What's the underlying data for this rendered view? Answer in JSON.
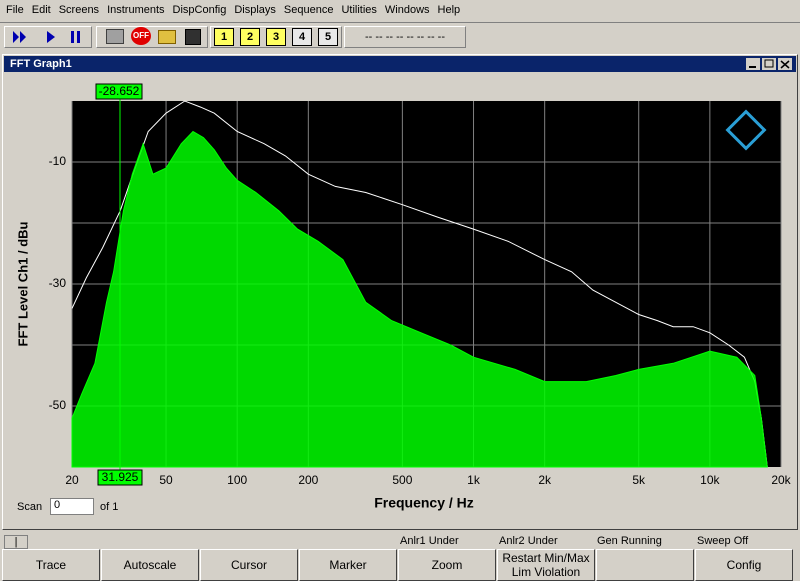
{
  "menu": [
    "File",
    "Edit",
    "Screens",
    "Instruments",
    "DispConfig",
    "Displays",
    "Sequence",
    "Utilities",
    "Windows",
    "Help"
  ],
  "toolbar": {
    "stop": "OFF",
    "panels": [
      "1",
      "2",
      "3",
      "4",
      "5"
    ],
    "readout": "-- -- -- -- -- -- -- --"
  },
  "window": {
    "title": "FFT Graph1"
  },
  "chart_data": {
    "type": "line",
    "xlabel": "Frequency / Hz",
    "ylabel": "FFT Level Ch1 / dBu",
    "xscale": "log",
    "xlim": [
      20,
      20000
    ],
    "ylim": [
      -60,
      0
    ],
    "xticks": [
      20,
      50,
      100,
      200,
      500,
      {
        "value": 1000,
        "label": "1k"
      },
      {
        "value": 2000,
        "label": "2k"
      },
      {
        "value": 5000,
        "label": "5k"
      },
      {
        "value": 10000,
        "label": "10k"
      },
      {
        "value": 20000,
        "label": "20k"
      }
    ],
    "yticks": [
      -50,
      -30,
      -10
    ],
    "minor_yticks": [
      -40,
      -20
    ],
    "grid": true,
    "background": "#000000",
    "grid_color": "#808080",
    "series": [
      {
        "color": "#ffffff",
        "fill": false,
        "x": [
          20,
          23,
          27,
          32,
          37,
          42,
          50,
          60,
          70,
          80,
          100,
          130,
          160,
          200,
          260,
          350,
          500,
          700,
          1000,
          1400,
          2000,
          2600,
          3200,
          4000,
          5000,
          6000,
          7000,
          8500,
          10000,
          12000,
          14000,
          15500,
          16500,
          17500
        ],
        "values": [
          -34,
          -29,
          -24,
          -18,
          -11,
          -5,
          -2,
          0,
          -1,
          -2,
          -5,
          -7,
          -9,
          -12,
          -14,
          -15,
          -17,
          -19,
          -21,
          -23,
          -26,
          -28,
          -31,
          -33,
          -35,
          -36,
          -37,
          -37,
          -38,
          -40,
          -42,
          -46,
          -52,
          -60
        ]
      },
      {
        "color": "#00ff00",
        "fill": true,
        "x": [
          20,
          22,
          25,
          28,
          30,
          33,
          36,
          40,
          44,
          50,
          58,
          65,
          72,
          80,
          90,
          100,
          120,
          150,
          180,
          220,
          280,
          350,
          450,
          600,
          800,
          1000,
          1500,
          2000,
          3000,
          4000,
          5000,
          7000,
          10000,
          13000,
          15500,
          16500,
          17500
        ],
        "values": [
          -52,
          -48,
          -43,
          -33,
          -28,
          -18,
          -12,
          -7,
          -12,
          -11,
          -7,
          -5,
          -6,
          -8,
          -11,
          -13,
          -15,
          -18,
          -21,
          -23,
          -26,
          -33,
          -36,
          -38,
          -40,
          -42,
          -44,
          -46,
          -46,
          -45,
          -44,
          -43,
          -41,
          -42,
          -45,
          -52,
          -60
        ]
      }
    ],
    "cursor": {
      "x": 31.925,
      "y": -28.652,
      "color": "#00ff00"
    }
  },
  "scan": {
    "label": "Scan",
    "value": "0",
    "of": "of 1"
  },
  "status": [
    "Anlr1 Under",
    "Anlr2 Under",
    "Gen Running",
    "Sweep Off"
  ],
  "softkeys": [
    "Trace",
    "Autoscale",
    "Cursor",
    "Marker",
    "Zoom",
    "Restart Min/Max",
    "Config"
  ],
  "lim_violation": "Lim Violation"
}
